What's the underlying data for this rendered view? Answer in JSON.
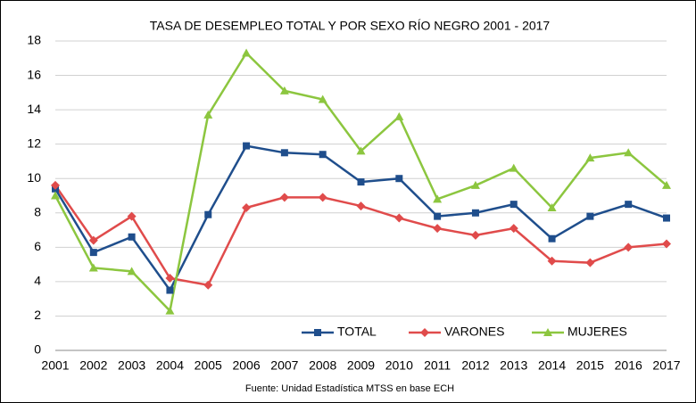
{
  "chart_data": {
    "type": "line",
    "title": "TASA DE DESEMPLEO TOTAL Y POR SEXO RÍO NEGRO 2001 - 2017",
    "source": "Fuente: Unidad Estadística MTSS en base ECH",
    "categories": [
      "2001",
      "2002",
      "2003",
      "2004",
      "2005",
      "2006",
      "2007",
      "2008",
      "2009",
      "2010",
      "2011",
      "2012",
      "2013",
      "2014",
      "2015",
      "2016",
      "2017"
    ],
    "series": [
      {
        "name": "TOTAL",
        "color": "#1f4e8c",
        "marker": "square",
        "values": [
          9.4,
          5.7,
          6.6,
          3.5,
          7.9,
          11.9,
          11.5,
          11.4,
          9.8,
          10.0,
          7.8,
          8.0,
          8.5,
          6.5,
          7.8,
          8.5,
          7.7
        ]
      },
      {
        "name": "VARONES",
        "color": "#e04b4b",
        "marker": "diamond",
        "values": [
          9.6,
          6.4,
          7.8,
          4.2,
          3.8,
          8.3,
          8.9,
          8.9,
          8.4,
          7.7,
          7.1,
          6.7,
          7.1,
          5.2,
          5.1,
          6.0,
          6.2
        ]
      },
      {
        "name": "MUJERES",
        "color": "#8cc63f",
        "marker": "triangle",
        "values": [
          9.0,
          4.8,
          4.6,
          2.3,
          13.7,
          17.3,
          15.1,
          14.6,
          11.6,
          13.6,
          8.8,
          9.6,
          10.6,
          8.3,
          11.2,
          11.5,
          9.6
        ]
      }
    ],
    "ylim": [
      0,
      18
    ],
    "yticks": [
      0,
      2,
      4,
      6,
      8,
      10,
      12,
      14,
      16,
      18
    ],
    "grid": true,
    "legend": "bottom"
  }
}
